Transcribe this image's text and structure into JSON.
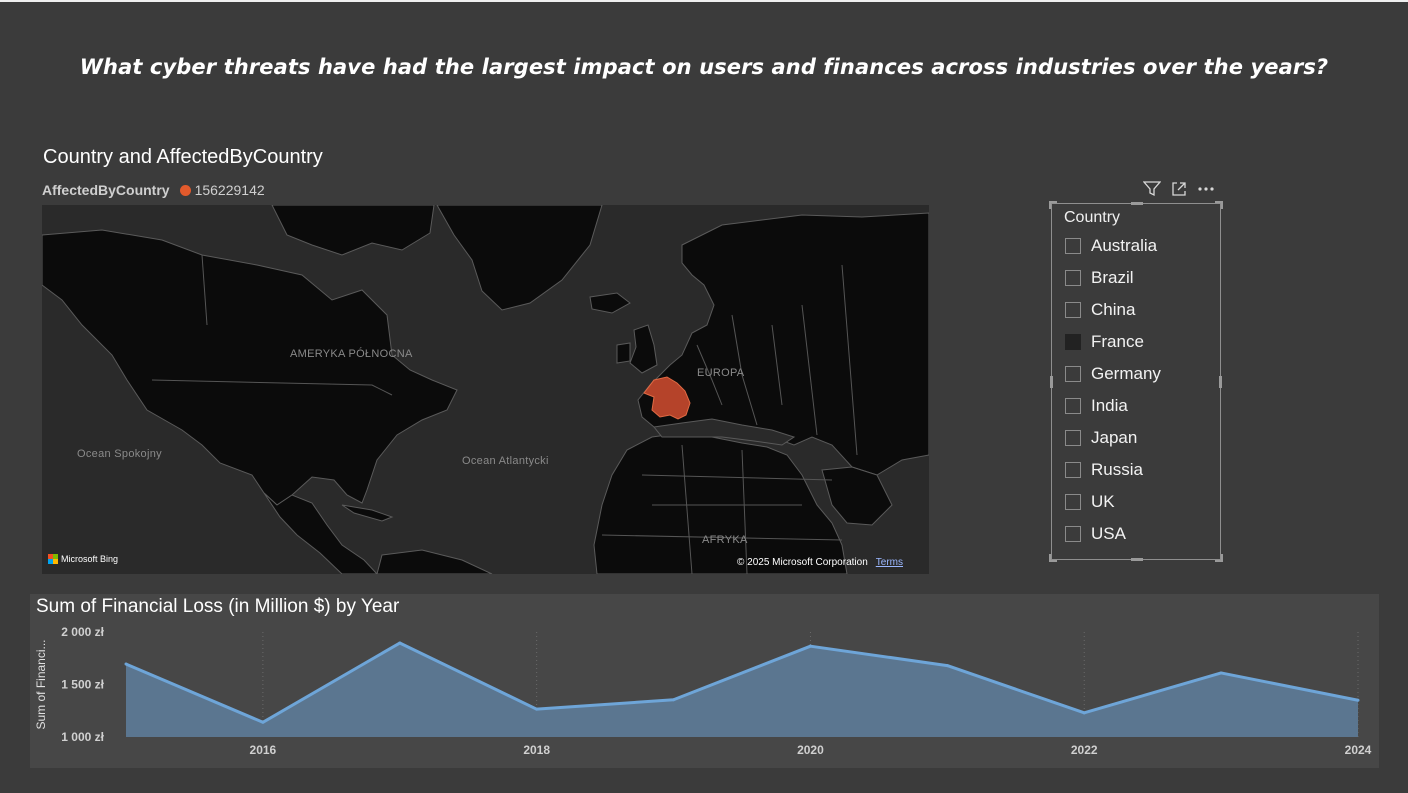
{
  "page": {
    "title": "What cyber threats have had the largest impact on users and finances across industries over the years?"
  },
  "map_visual": {
    "title": "Country and AffectedByCountry",
    "legend": {
      "name": "AffectedByCountry",
      "value": "156229142",
      "color": "#e25a2c"
    },
    "labels": {
      "north_america": "AMERYKA PÓŁNOCNA",
      "europe": "EUROPA",
      "africa": "AFRYKA",
      "pacific": "Ocean Spokojny",
      "atlantic": "Ocean Atlantycki"
    },
    "attribution": {
      "bing": "Microsoft Bing",
      "copyright": "© 2025 Microsoft Corporation",
      "terms": "Terms"
    },
    "highlighted_country": "France",
    "highlight_color": "#b5432a"
  },
  "slicer": {
    "header": "Country",
    "items": [
      {
        "label": "Australia",
        "checked": false
      },
      {
        "label": "Brazil",
        "checked": false
      },
      {
        "label": "China",
        "checked": false
      },
      {
        "label": "France",
        "checked": true
      },
      {
        "label": "Germany",
        "checked": false
      },
      {
        "label": "India",
        "checked": false
      },
      {
        "label": "Japan",
        "checked": false
      },
      {
        "label": "Russia",
        "checked": false
      },
      {
        "label": "UK",
        "checked": false
      },
      {
        "label": "USA",
        "checked": false
      }
    ],
    "toolbar": [
      "filter-icon",
      "focus-mode-icon",
      "more-options-icon"
    ]
  },
  "chart_data": {
    "type": "area",
    "title": "Sum of Financial Loss (in Million $) by Year",
    "ylabel": "Sum of Financi...",
    "xlabel": "",
    "x": [
      2015,
      2016,
      2017,
      2018,
      2019,
      2020,
      2021,
      2022,
      2023,
      2024
    ],
    "series": [
      {
        "values": [
          1695,
          1140,
          1895,
          1265,
          1355,
          1865,
          1680,
          1230,
          1610,
          1350
        ],
        "color": "#6ea5d8"
      }
    ],
    "xticks": [
      "2016",
      "2018",
      "2020",
      "2022",
      "2024"
    ],
    "yticks": [
      "1 000 zł",
      "1 500 zł",
      "2 000 zł"
    ],
    "ylim": [
      1000,
      2000
    ],
    "xlim": [
      2015,
      2024
    ],
    "grid": "vertical dotted"
  }
}
